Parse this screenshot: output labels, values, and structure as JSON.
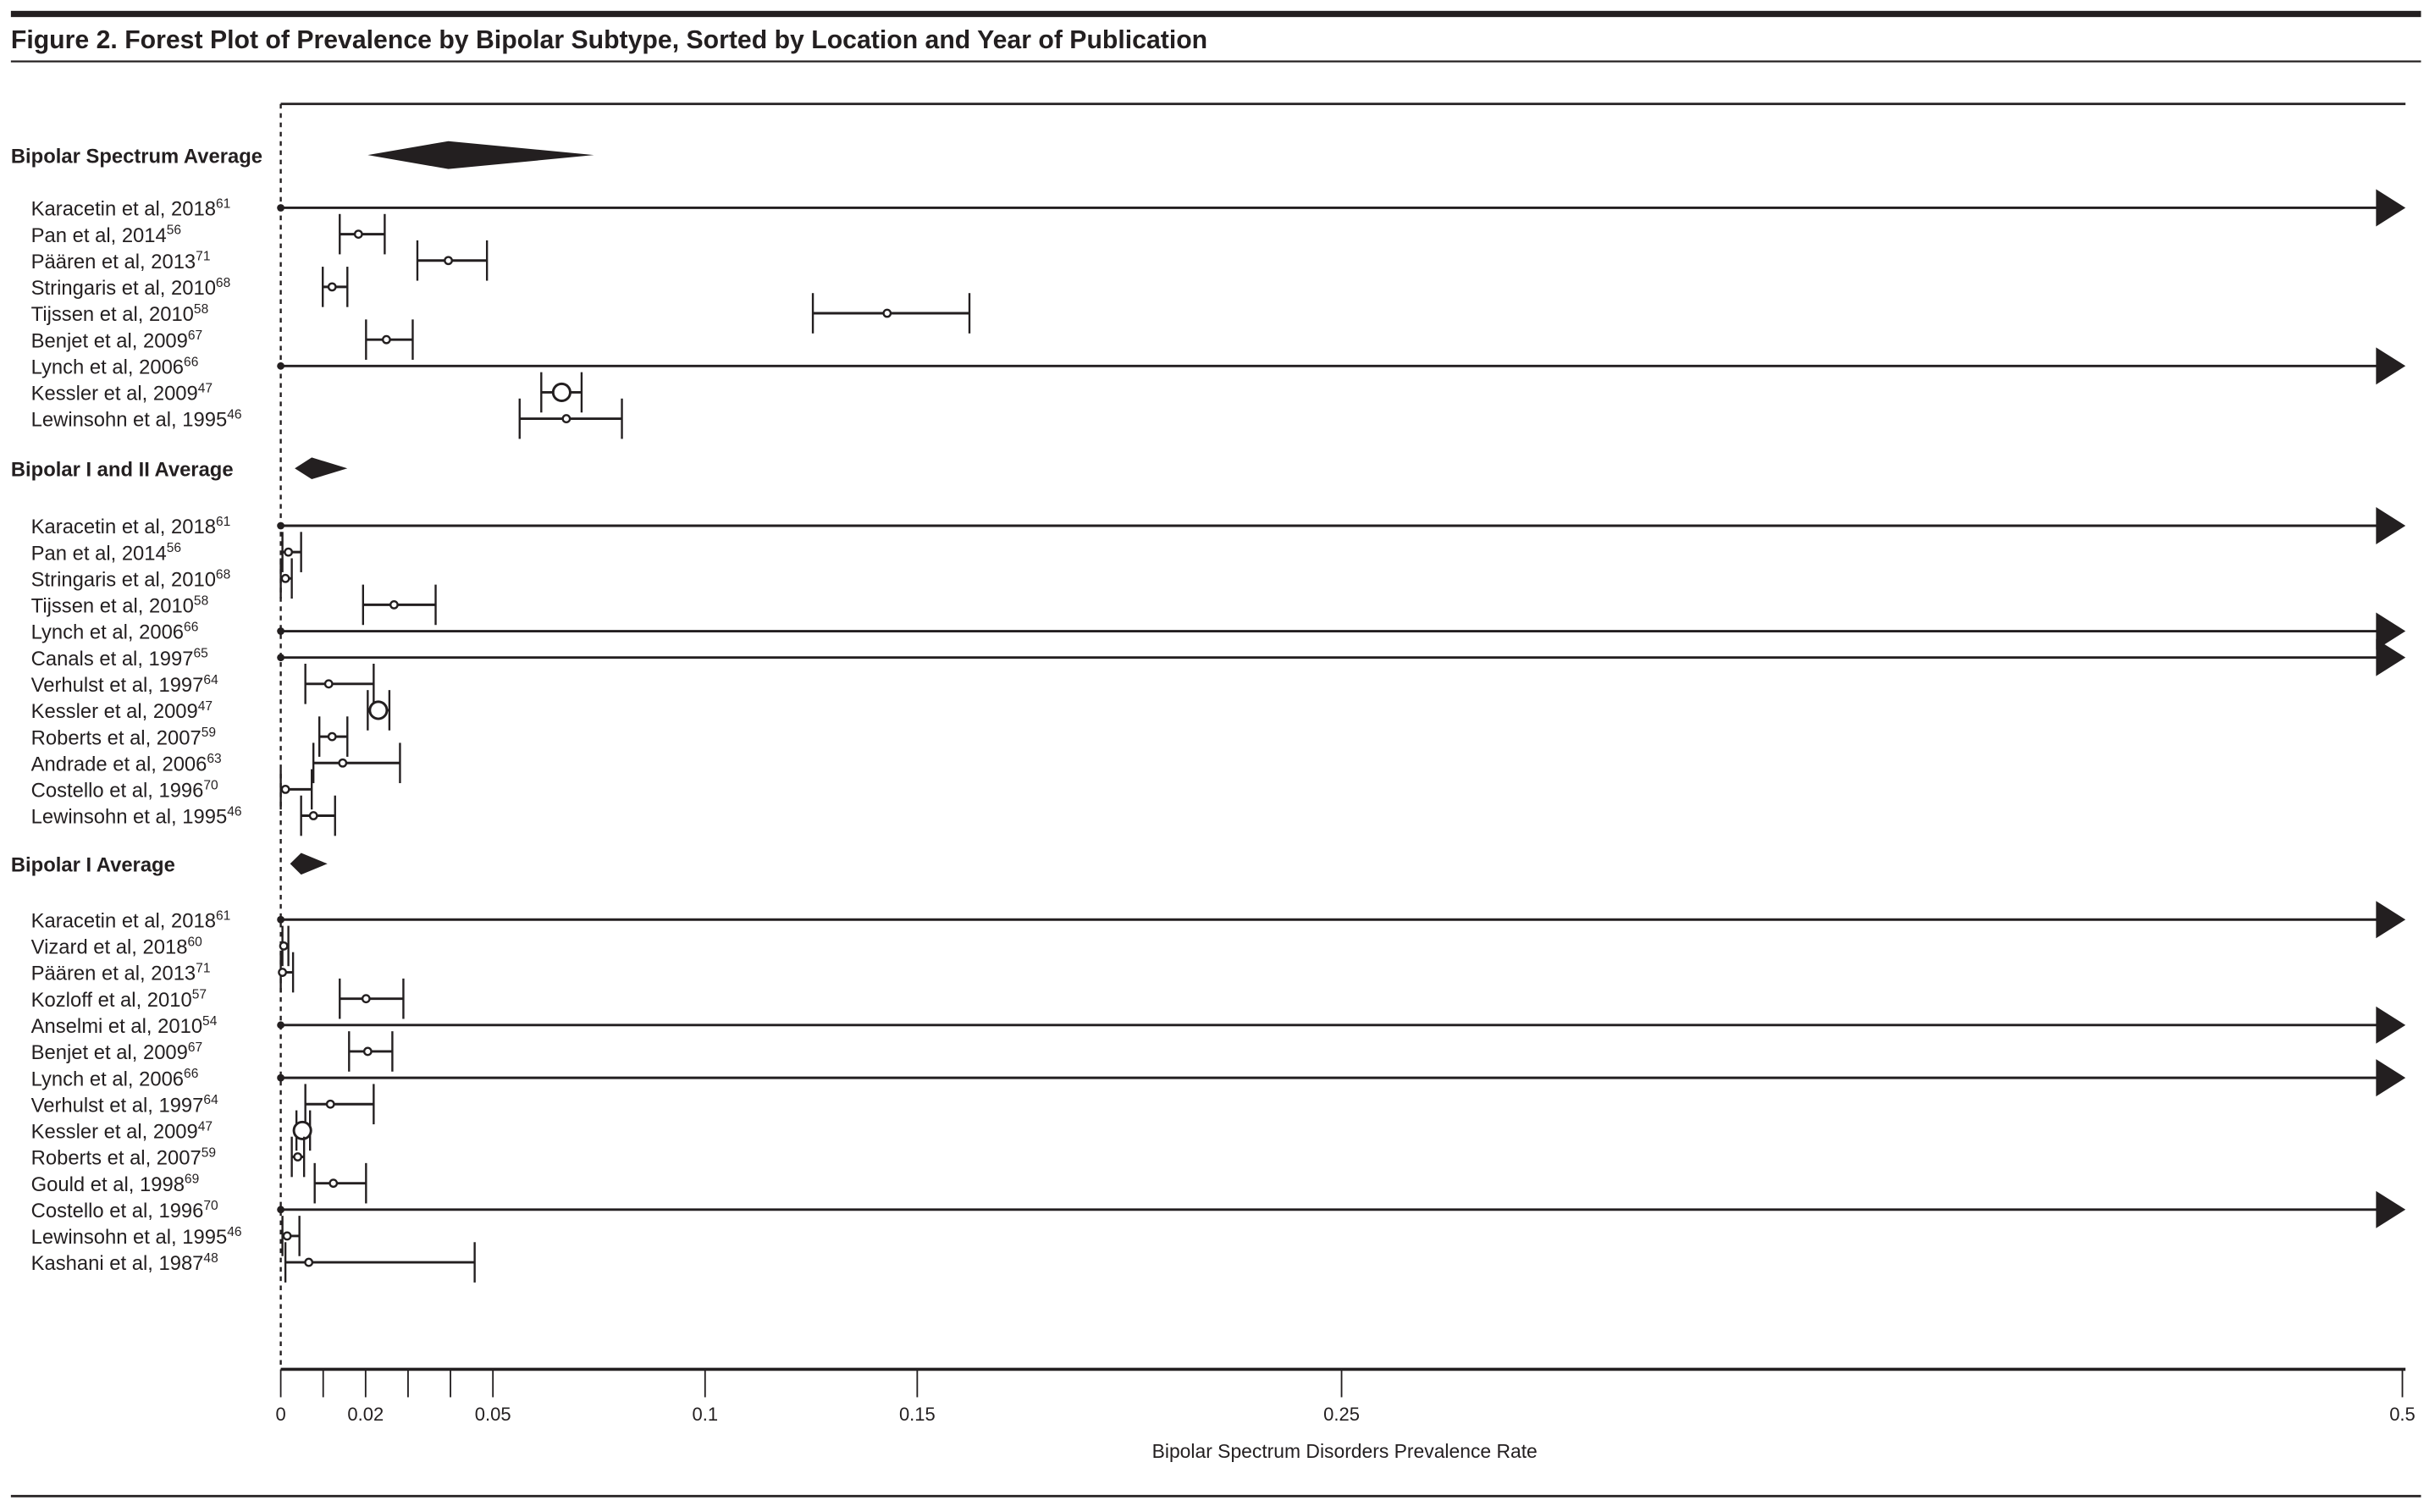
{
  "chart_data": {
    "type": "forest",
    "title": "Figure 2. Forest Plot of Prevalence by Bipolar Subtype, Sorted by Location and Year of Publication",
    "xlabel": "Bipolar Spectrum Disorders Prevalence Rate",
    "xlim": [
      0,
      0.5
    ],
    "ticks": [
      0,
      0.01,
      0.02,
      0.03,
      0.04,
      0.05,
      0.1,
      0.15,
      0.25,
      0.5
    ],
    "tick_labels": {
      "0": "0",
      "0.02": "0.02",
      "0.05": "0.05",
      "0.1": "0.1",
      "0.15": "0.15",
      "0.25": "0.25",
      "0.5": "0.5"
    },
    "reference_line": 0,
    "colors": {
      "ink": "#231f20"
    },
    "groups": [
      {
        "label": "Bipolar Spectrum Average",
        "summary": {
          "lo": 0.0205,
          "est": 0.0395,
          "hi": 0.0738
        },
        "studies": [
          {
            "name": "Karacetin et al, 2018",
            "ref": "61",
            "est": 0,
            "lo": 0,
            "hi": 0.5,
            "truncated": true
          },
          {
            "name": "Pan et al, 2014",
            "ref": "56",
            "est": 0.0183,
            "lo": 0.0139,
            "hi": 0.0245
          },
          {
            "name": "Päären et al, 2013",
            "ref": "71",
            "est": 0.0395,
            "lo": 0.0322,
            "hi": 0.0486
          },
          {
            "name": "Stringaris et al, 2010",
            "ref": "68",
            "est": 0.0121,
            "lo": 0.0099,
            "hi": 0.0157
          },
          {
            "name": "Tijssen et al, 2010",
            "ref": "58",
            "est": 0.1429,
            "lo": 0.1254,
            "hi": 0.1623
          },
          {
            "name": "Benjet et al, 2009",
            "ref": "67",
            "est": 0.0249,
            "lo": 0.0201,
            "hi": 0.0311
          },
          {
            "name": "Lynch et al, 2006",
            "ref": "66",
            "est": 0,
            "lo": 0,
            "hi": 0.5,
            "truncated": true
          },
          {
            "name": "Kessler et al, 2009",
            "ref": "47",
            "est": 0.0662,
            "lo": 0.0614,
            "hi": 0.0709,
            "large": true
          },
          {
            "name": "Lewinsohn et al, 1995",
            "ref": "46",
            "est": 0.0673,
            "lo": 0.0563,
            "hi": 0.0804
          }
        ]
      },
      {
        "label": "Bipolar I and II Average",
        "summary": {
          "lo": 0.0033,
          "est": 0.0073,
          "hi": 0.0157
        },
        "studies": [
          {
            "name": "Karacetin et al, 2018",
            "ref": "61",
            "est": 0,
            "lo": 0,
            "hi": 0.5,
            "truncated": true
          },
          {
            "name": "Pan et al, 2014",
            "ref": "56",
            "est": 0.0018,
            "lo": 0.0004,
            "hi": 0.0048
          },
          {
            "name": "Stringaris et al, 2010",
            "ref": "68",
            "est": 0.0011,
            "lo": 0,
            "hi": 0.0026
          },
          {
            "name": "Tijssen et al, 2010",
            "ref": "58",
            "est": 0.0267,
            "lo": 0.0194,
            "hi": 0.0365
          },
          {
            "name": "Lynch et al, 2006",
            "ref": "66",
            "est": 0,
            "lo": 0,
            "hi": 0.5,
            "truncated": true
          },
          {
            "name": "Canals et al, 1997",
            "ref": "65",
            "est": 0,
            "lo": 0,
            "hi": 0.5,
            "truncated": true
          },
          {
            "name": "Verhulst et al, 1997",
            "ref": "64",
            "est": 0.0113,
            "lo": 0.0058,
            "hi": 0.0219
          },
          {
            "name": "Kessler et al, 2009",
            "ref": "47",
            "est": 0.023,
            "lo": 0.0205,
            "hi": 0.0256,
            "large": true
          },
          {
            "name": "Roberts et al, 2007",
            "ref": "59",
            "est": 0.0121,
            "lo": 0.0091,
            "hi": 0.0157
          },
          {
            "name": "Andrade et al, 2006",
            "ref": "63",
            "est": 0.0146,
            "lo": 0.0077,
            "hi": 0.0281
          },
          {
            "name": "Costello et al, 1996",
            "ref": "70",
            "est": 0.0011,
            "lo": 0,
            "hi": 0.0073
          },
          {
            "name": "Lewinsohn et al, 1995",
            "ref": "46",
            "est": 0.0077,
            "lo": 0.0048,
            "hi": 0.0128
          }
        ]
      },
      {
        "label": "Bipolar I Average",
        "summary": {
          "lo": 0.0022,
          "est": 0.0048,
          "hi": 0.011
        },
        "studies": [
          {
            "name": "Karacetin et al, 2018",
            "ref": "61",
            "est": 0,
            "lo": 0,
            "hi": 0.5,
            "truncated": true
          },
          {
            "name": "Vizard et al, 2018",
            "ref": "60",
            "est": 0.0007,
            "lo": 0.0004,
            "hi": 0.0018
          },
          {
            "name": "Päären et al, 2013",
            "ref": "71",
            "est": 0.0004,
            "lo": 0,
            "hi": 0.0029
          },
          {
            "name": "Kozloff et al, 2010",
            "ref": "57",
            "est": 0.0201,
            "lo": 0.0139,
            "hi": 0.0289
          },
          {
            "name": "Anselmi et al, 2010",
            "ref": "54",
            "est": 0,
            "lo": 0,
            "hi": 0.5,
            "truncated": true
          },
          {
            "name": "Benjet et al, 2009",
            "ref": "67",
            "est": 0.0205,
            "lo": 0.0161,
            "hi": 0.0263
          },
          {
            "name": "Lynch et al, 2006",
            "ref": "66",
            "est": 0,
            "lo": 0,
            "hi": 0.5,
            "truncated": true
          },
          {
            "name": "Verhulst et al, 1997",
            "ref": "64",
            "est": 0.0117,
            "lo": 0.0058,
            "hi": 0.0219
          },
          {
            "name": "Kessler et al, 2009",
            "ref": "47",
            "est": 0.0051,
            "lo": 0.0037,
            "hi": 0.0069,
            "large": true
          },
          {
            "name": "Roberts et al, 2007",
            "ref": "59",
            "est": 0.004,
            "lo": 0.0026,
            "hi": 0.0055
          },
          {
            "name": "Gould et al, 1998",
            "ref": "69",
            "est": 0.0124,
            "lo": 0.008,
            "hi": 0.0201
          },
          {
            "name": "Costello et al, 1996",
            "ref": "70",
            "est": 0,
            "lo": 0,
            "hi": 0.5,
            "truncated": true
          },
          {
            "name": "Lewinsohn et al, 1995",
            "ref": "46",
            "est": 0.0015,
            "lo": 0.0004,
            "hi": 0.0044
          },
          {
            "name": "Kashani et al, 1987",
            "ref": "48",
            "est": 0.0066,
            "lo": 0.0011,
            "hi": 0.0457
          }
        ]
      }
    ]
  }
}
